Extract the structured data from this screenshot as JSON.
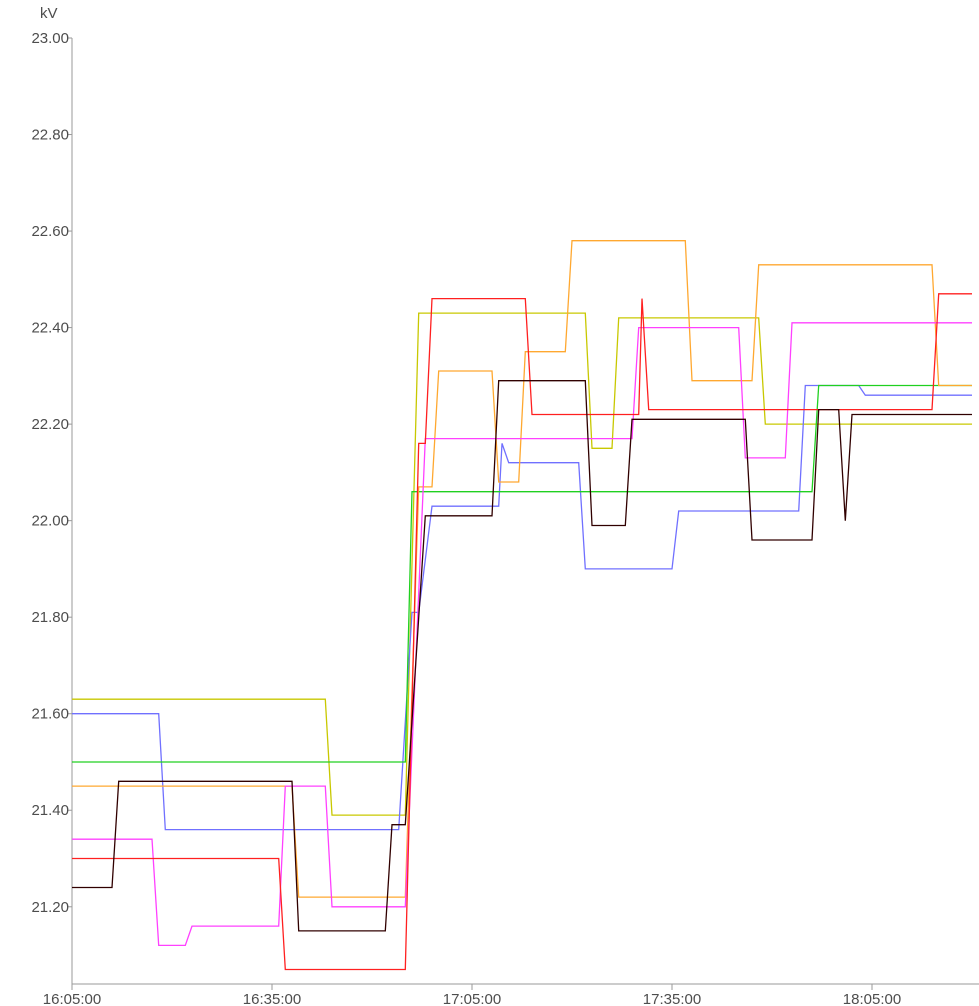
{
  "chart_data": {
    "type": "line",
    "unit": "kV",
    "ylim": [
      21.04,
      23.0
    ],
    "yticks": [
      "23.00",
      "22.80",
      "22.60",
      "22.40",
      "22.20",
      "22.00",
      "21.80",
      "21.60",
      "21.40",
      "21.20"
    ],
    "ytick_values": [
      23.0,
      22.8,
      22.6,
      22.4,
      22.2,
      22.0,
      21.8,
      21.6,
      21.4,
      21.2
    ],
    "xlim": [
      "16:05:00",
      "18:20:00"
    ],
    "xticks": [
      "16:05:00",
      "16:35:00",
      "17:05:00",
      "17:35:00",
      "18:05:00"
    ],
    "grid": false,
    "legend": "none",
    "series": [
      {
        "color": "#c8c800",
        "points": [
          [
            "16:05:00",
            21.63
          ],
          [
            "16:43:00",
            21.63
          ],
          [
            "16:44:00",
            21.39
          ],
          [
            "16:55:00",
            21.39
          ],
          [
            "16:57:00",
            22.43
          ],
          [
            "17:22:00",
            22.43
          ],
          [
            "17:23:00",
            22.15
          ],
          [
            "17:26:00",
            22.15
          ],
          [
            "17:27:00",
            22.42
          ],
          [
            "17:48:00",
            22.42
          ],
          [
            "17:49:00",
            22.2
          ],
          [
            "18:20:00",
            22.2
          ]
        ]
      },
      {
        "color": "#7070ff",
        "points": [
          [
            "16:05:00",
            21.6
          ],
          [
            "16:18:00",
            21.6
          ],
          [
            "16:19:00",
            21.36
          ],
          [
            "16:54:00",
            21.36
          ],
          [
            "16:56:00",
            21.81
          ],
          [
            "16:57:00",
            21.81
          ],
          [
            "16:59:00",
            22.03
          ],
          [
            "17:09:00",
            22.03
          ],
          [
            "17:09:30",
            22.16
          ],
          [
            "17:10:30",
            22.12
          ],
          [
            "17:21:00",
            22.12
          ],
          [
            "17:22:00",
            21.9
          ],
          [
            "17:35:00",
            21.9
          ],
          [
            "17:36:00",
            22.02
          ],
          [
            "17:54:00",
            22.02
          ],
          [
            "17:55:00",
            22.28
          ],
          [
            "18:03:00",
            22.28
          ],
          [
            "18:04:00",
            22.26
          ],
          [
            "18:20:00",
            22.26
          ]
        ]
      },
      {
        "color": "#20d020",
        "points": [
          [
            "16:05:00",
            21.5
          ],
          [
            "16:55:00",
            21.5
          ],
          [
            "16:56:00",
            22.06
          ],
          [
            "17:56:00",
            22.06
          ],
          [
            "17:57:00",
            22.28
          ],
          [
            "18:20:00",
            22.28
          ]
        ]
      },
      {
        "color": "#ffa830",
        "points": [
          [
            "16:05:00",
            21.45
          ],
          [
            "16:38:00",
            21.45
          ],
          [
            "16:39:00",
            21.22
          ],
          [
            "16:55:00",
            21.22
          ],
          [
            "16:57:00",
            22.07
          ],
          [
            "16:59:00",
            22.07
          ],
          [
            "17:00:00",
            22.31
          ],
          [
            "17:08:00",
            22.31
          ],
          [
            "17:09:00",
            22.08
          ],
          [
            "17:12:00",
            22.08
          ],
          [
            "17:13:00",
            22.35
          ],
          [
            "17:19:00",
            22.35
          ],
          [
            "17:20:00",
            22.58
          ],
          [
            "17:37:00",
            22.58
          ],
          [
            "17:38:00",
            22.29
          ],
          [
            "17:47:00",
            22.29
          ],
          [
            "17:48:00",
            22.53
          ],
          [
            "18:14:00",
            22.53
          ],
          [
            "18:15:00",
            22.28
          ],
          [
            "18:20:00",
            22.28
          ]
        ]
      },
      {
        "color": "#ff40ff",
        "points": [
          [
            "16:05:00",
            21.34
          ],
          [
            "16:17:00",
            21.34
          ],
          [
            "16:18:00",
            21.12
          ],
          [
            "16:22:00",
            21.12
          ],
          [
            "16:23:00",
            21.16
          ],
          [
            "16:36:00",
            21.16
          ],
          [
            "16:37:00",
            21.45
          ],
          [
            "16:43:00",
            21.45
          ],
          [
            "16:44:00",
            21.2
          ],
          [
            "16:55:00",
            21.2
          ],
          [
            "16:58:00",
            22.17
          ],
          [
            "17:29:00",
            22.17
          ],
          [
            "17:30:00",
            22.4
          ],
          [
            "17:45:00",
            22.4
          ],
          [
            "17:46:00",
            22.13
          ],
          [
            "17:52:00",
            22.13
          ],
          [
            "17:53:00",
            22.41
          ],
          [
            "18:20:00",
            22.41
          ]
        ]
      },
      {
        "color": "#ff2020",
        "points": [
          [
            "16:05:00",
            21.3
          ],
          [
            "16:36:00",
            21.3
          ],
          [
            "16:37:00",
            21.07
          ],
          [
            "16:55:00",
            21.07
          ],
          [
            "16:57:00",
            22.16
          ],
          [
            "16:58:00",
            22.16
          ],
          [
            "16:59:00",
            22.46
          ],
          [
            "17:13:00",
            22.46
          ],
          [
            "17:14:00",
            22.22
          ],
          [
            "17:30:00",
            22.22
          ],
          [
            "17:30:30",
            22.46
          ],
          [
            "17:31:30",
            22.23
          ],
          [
            "17:59:00",
            22.23
          ],
          [
            "17:59:30",
            22.23
          ],
          [
            "18:14:00",
            22.23
          ],
          [
            "18:15:00",
            22.47
          ],
          [
            "18:20:00",
            22.47
          ]
        ]
      },
      {
        "color": "#300000",
        "points": [
          [
            "16:05:00",
            21.24
          ],
          [
            "16:11:00",
            21.24
          ],
          [
            "16:12:00",
            21.46
          ],
          [
            "16:38:00",
            21.46
          ],
          [
            "16:39:00",
            21.15
          ],
          [
            "16:52:00",
            21.15
          ],
          [
            "16:53:00",
            21.37
          ],
          [
            "16:55:00",
            21.37
          ],
          [
            "16:58:00",
            22.01
          ],
          [
            "17:08:00",
            22.01
          ],
          [
            "17:09:00",
            22.29
          ],
          [
            "17:22:00",
            22.29
          ],
          [
            "17:23:00",
            21.99
          ],
          [
            "17:28:00",
            21.99
          ],
          [
            "17:29:00",
            22.21
          ],
          [
            "17:46:00",
            22.21
          ],
          [
            "17:47:00",
            21.96
          ],
          [
            "17:56:00",
            21.96
          ],
          [
            "17:57:00",
            22.23
          ],
          [
            "18:00:00",
            22.23
          ],
          [
            "18:01:00",
            22.0
          ],
          [
            "18:02:00",
            22.22
          ],
          [
            "18:20:00",
            22.22
          ]
        ]
      }
    ]
  }
}
